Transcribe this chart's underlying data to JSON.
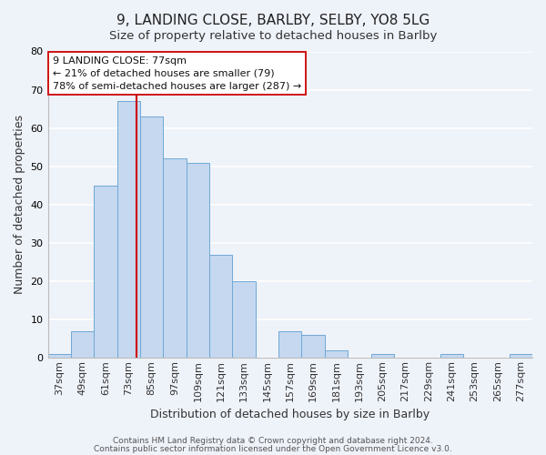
{
  "title": "9, LANDING CLOSE, BARLBY, SELBY, YO8 5LG",
  "subtitle": "Size of property relative to detached houses in Barlby",
  "xlabel": "Distribution of detached houses by size in Barlby",
  "ylabel": "Number of detached properties",
  "bar_labels": [
    "37sqm",
    "49sqm",
    "61sqm",
    "73sqm",
    "85sqm",
    "97sqm",
    "109sqm",
    "121sqm",
    "133sqm",
    "145sqm",
    "157sqm",
    "169sqm",
    "181sqm",
    "193sqm",
    "205sqm",
    "217sqm",
    "229sqm",
    "241sqm",
    "253sqm",
    "265sqm",
    "277sqm"
  ],
  "bar_values": [
    1,
    7,
    45,
    67,
    63,
    52,
    51,
    27,
    20,
    0,
    7,
    6,
    2,
    0,
    1,
    0,
    0,
    1,
    0,
    0,
    1
  ],
  "bar_color": "#c5d8ef",
  "bar_edge_color": "#6fa8d5",
  "highlight_bar_index": 3,
  "highlight_line_color": "#cc0000",
  "annotation_line1": "9 LANDING CLOSE: 77sqm",
  "annotation_line2": "← 21% of detached houses are smaller (79)",
  "annotation_line3": "78% of semi-detached houses are larger (287) →",
  "annotation_box_color": "#ffffff",
  "annotation_box_edge": "#cc0000",
  "ylim": [
    0,
    80
  ],
  "yticks": [
    0,
    10,
    20,
    30,
    40,
    50,
    60,
    70,
    80
  ],
  "footer_line1": "Contains HM Land Registry data © Crown copyright and database right 2024.",
  "footer_line2": "Contains public sector information licensed under the Open Government Licence v3.0.",
  "background_color": "#eef2f9",
  "grid_color": "#ffffff",
  "title_fontsize": 11,
  "subtitle_fontsize": 9.5,
  "axis_label_fontsize": 9,
  "tick_fontsize": 8,
  "annotation_fontsize": 8,
  "footer_fontsize": 6.5
}
